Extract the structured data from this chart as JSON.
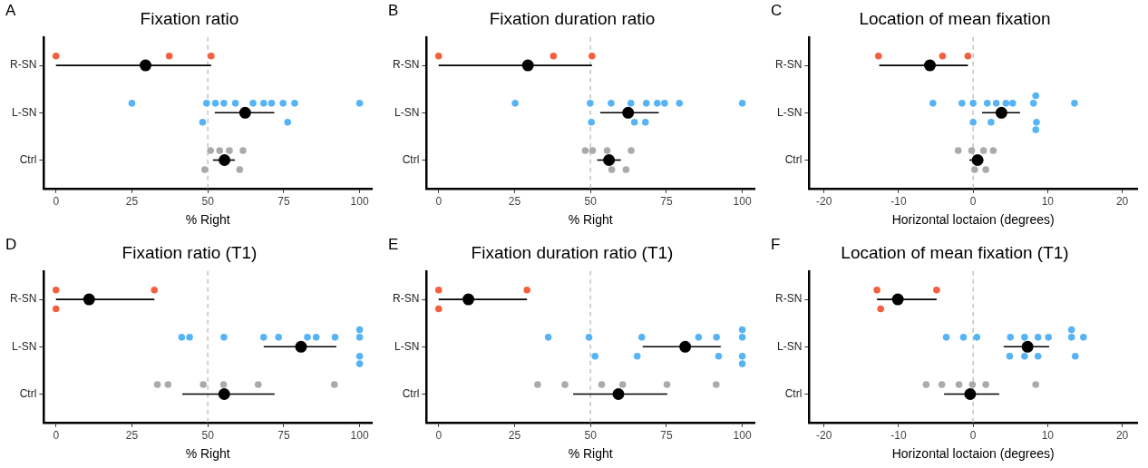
{
  "chart_data": [
    {
      "type": "scatter",
      "orientation": "horizontal",
      "title": "Fixation ratio",
      "xlabel": "% Right",
      "annotations": [
        "A"
      ],
      "categories": [
        "R-SN",
        "L-SN",
        "Ctrl"
      ],
      "xlim": [
        -4,
        104
      ],
      "xticks": [
        0,
        25,
        50,
        75,
        100
      ],
      "grid": false,
      "legend": false,
      "marker": "circle",
      "ref_lines": [
        {
          "axis": "x",
          "value": 50,
          "label": null,
          "color": "#bbbbbb",
          "line_style": "dashed"
        }
      ],
      "series": [
        {
          "color": "#aaaaaa",
          "x": [
            "Ctrl",
            "Ctrl",
            "Ctrl",
            "Ctrl",
            "Ctrl",
            "Ctrl"
          ],
          "values": [
            50.9,
            61.6,
            53.9,
            49.0,
            57.1,
            60.5
          ]
        },
        {
          "color": "#56b4f5",
          "x": [
            "L-SN",
            "L-SN",
            "L-SN",
            "L-SN",
            "L-SN",
            "L-SN",
            "L-SN",
            "L-SN",
            "L-SN",
            "L-SN",
            "L-SN",
            "L-SN",
            "L-SN"
          ],
          "values": [
            55.3,
            49.6,
            68.4,
            48.3,
            59.1,
            71.0,
            78.6,
            25.0,
            52.5,
            64.9,
            74.8,
            100,
            76.3
          ]
        },
        {
          "color": "#f4603f",
          "x": [
            "R-SN",
            "R-SN",
            "R-SN"
          ],
          "values": [
            0,
            37.3,
            51.1
          ]
        },
        {
          "color": "#000000",
          "x": [
            "R-SN",
            "L-SN",
            "Ctrl"
          ],
          "values": [
            29.5,
            62.3,
            55.5
          ],
          "errors": [
            [
              0,
              51.1
            ],
            [
              52.3,
              71.9
            ],
            [
              51.7,
              58.9
            ]
          ]
        }
      ]
    },
    {
      "type": "scatter",
      "orientation": "horizontal",
      "title": "Fixation duration ratio",
      "xlabel": "% Right",
      "annotations": [
        "B"
      ],
      "categories": [
        "R-SN",
        "L-SN",
        "Ctrl"
      ],
      "xlim": [
        -4,
        104
      ],
      "xticks": [
        0,
        25,
        50,
        75,
        100
      ],
      "grid": false,
      "legend": false,
      "marker": "circle",
      "ref_lines": [
        {
          "axis": "x",
          "value": 50,
          "label": null,
          "color": "#bbbbbb",
          "line_style": "dashed"
        }
      ],
      "series": [
        {
          "color": "#aaaaaa",
          "x": [
            "Ctrl",
            "Ctrl",
            "Ctrl",
            "Ctrl",
            "Ctrl",
            "Ctrl"
          ],
          "values": [
            55.5,
            57.0,
            63.4,
            48.3,
            50.7,
            61.7
          ]
        },
        {
          "color": "#56b4f5",
          "x": [
            "L-SN",
            "L-SN",
            "L-SN",
            "L-SN",
            "L-SN",
            "L-SN",
            "L-SN",
            "L-SN",
            "L-SN",
            "L-SN",
            "L-SN",
            "L-SN"
          ],
          "values": [
            25.2,
            49.9,
            50.3,
            56.8,
            63.3,
            64.5,
            68.4,
            74.4,
            100,
            68.1,
            79.3,
            72.0
          ]
        },
        {
          "color": "#f4603f",
          "x": [
            "R-SN",
            "R-SN",
            "R-SN"
          ],
          "values": [
            0,
            37.8,
            50.5
          ]
        },
        {
          "color": "#000000",
          "x": [
            "R-SN",
            "L-SN",
            "Ctrl"
          ],
          "values": [
            29.4,
            62.4,
            56.1
          ],
          "errors": [
            [
              0,
              50.5
            ],
            [
              53.2,
              72.5
            ],
            [
              52.2,
              60.0
            ]
          ]
        }
      ]
    },
    {
      "type": "scatter",
      "orientation": "horizontal",
      "title": "Location of mean fixation",
      "xlabel": "Horizontal loctaion (degrees)",
      "annotations": [
        "C"
      ],
      "categories": [
        "R-SN",
        "L-SN",
        "Ctrl"
      ],
      "xlim": [
        -22,
        22
      ],
      "xticks": [
        -20,
        -10,
        0,
        10,
        20
      ],
      "grid": false,
      "legend": false,
      "marker": "circle",
      "ref_lines": [
        {
          "axis": "x",
          "value": 0,
          "label": null,
          "color": "#bbbbbb",
          "line_style": "dashed"
        }
      ],
      "series": [
        {
          "color": "#aaaaaa",
          "x": [
            "Ctrl",
            "Ctrl",
            "Ctrl",
            "Ctrl",
            "Ctrl",
            "Ctrl"
          ],
          "values": [
            2.7,
            1.4,
            -2.0,
            -0.2,
            0.2,
            1.7
          ]
        },
        {
          "color": "#56b4f5",
          "x": [
            "L-SN",
            "L-SN",
            "L-SN",
            "L-SN",
            "L-SN",
            "L-SN",
            "L-SN",
            "L-SN",
            "L-SN",
            "L-SN",
            "L-SN",
            "L-SN",
            "L-SN",
            "L-SN"
          ],
          "values": [
            -1.5,
            0,
            1.9,
            8.1,
            8.5,
            13.6,
            3.1,
            4.4,
            5.3,
            8.4,
            0.0,
            2.4,
            -5.4,
            8.4
          ]
        },
        {
          "color": "#f4603f",
          "x": [
            "R-SN",
            "R-SN",
            "R-SN"
          ],
          "values": [
            -0.7,
            -12.7,
            -4.1
          ]
        },
        {
          "color": "#000000",
          "x": [
            "R-SN",
            "L-SN",
            "Ctrl"
          ],
          "values": [
            -5.8,
            3.8,
            0.6
          ],
          "errors": [
            [
              -12.6,
              -0.7
            ],
            [
              1.2,
              6.3
            ],
            [
              -0.5,
              1.2
            ]
          ]
        }
      ]
    },
    {
      "type": "scatter",
      "orientation": "horizontal",
      "title": "Fixation ratio (T1)",
      "xlabel": "% Right",
      "annotations": [
        "D"
      ],
      "categories": [
        "R-SN",
        "L-SN",
        "Ctrl"
      ],
      "xlim": [
        -4,
        104
      ],
      "xticks": [
        0,
        25,
        50,
        75,
        100
      ],
      "grid": false,
      "legend": false,
      "marker": "circle",
      "ref_lines": [
        {
          "axis": "x",
          "value": 50,
          "label": null,
          "color": "#bbbbbb",
          "line_style": "dashed"
        }
      ],
      "series": [
        {
          "color": "#aaaaaa",
          "x": [
            "Ctrl",
            "Ctrl",
            "Ctrl",
            "Ctrl",
            "Ctrl",
            "Ctrl"
          ],
          "values": [
            48.5,
            33.4,
            36.9,
            55.2,
            66.6,
            91.7
          ]
        },
        {
          "color": "#56b4f5",
          "x": [
            "L-SN",
            "L-SN",
            "L-SN",
            "L-SN",
            "L-SN",
            "L-SN",
            "L-SN",
            "L-SN",
            "L-SN",
            "L-SN",
            "L-SN",
            "L-SN"
          ],
          "values": [
            41.4,
            55.3,
            44.0,
            68.4,
            82.8,
            85.7,
            91.9,
            100,
            73.3,
            100,
            100,
            100
          ]
        },
        {
          "color": "#f4603f",
          "x": [
            "R-SN",
            "R-SN",
            "R-SN"
          ],
          "values": [
            0,
            32.4,
            0
          ]
        },
        {
          "color": "#000000",
          "x": [
            "R-SN",
            "L-SN",
            "Ctrl"
          ],
          "values": [
            10.9,
            80.7,
            55.4
          ],
          "errors": [
            [
              0,
              32.4
            ],
            [
              68.4,
              92.3
            ],
            [
              41.6,
              72.0
            ]
          ]
        }
      ]
    },
    {
      "type": "scatter",
      "orientation": "horizontal",
      "title": "Fixation duration ratio (T1)",
      "xlabel": "% Right",
      "annotations": [
        "E"
      ],
      "categories": [
        "R-SN",
        "L-SN",
        "Ctrl"
      ],
      "xlim": [
        -4,
        104
      ],
      "xticks": [
        0,
        25,
        50,
        75,
        100
      ],
      "grid": false,
      "legend": false,
      "marker": "circle",
      "ref_lines": [
        {
          "axis": "x",
          "value": 50,
          "label": null,
          "color": "#bbbbbb",
          "line_style": "dashed"
        }
      ],
      "series": [
        {
          "color": "#aaaaaa",
          "x": [
            "Ctrl",
            "Ctrl",
            "Ctrl",
            "Ctrl",
            "Ctrl",
            "Ctrl"
          ],
          "values": [
            32.6,
            41.6,
            75.2,
            91.4,
            53.7,
            60.6
          ]
        },
        {
          "color": "#56b4f5",
          "x": [
            "L-SN",
            "L-SN",
            "L-SN",
            "L-SN",
            "L-SN",
            "L-SN",
            "L-SN",
            "L-SN",
            "L-SN",
            "L-SN",
            "L-SN",
            "L-SN"
          ],
          "values": [
            36.1,
            49.5,
            51.5,
            66.9,
            85.6,
            100,
            91.5,
            100,
            65.4,
            100,
            92.2,
            100
          ]
        },
        {
          "color": "#f4603f",
          "x": [
            "R-SN",
            "R-SN",
            "R-SN"
          ],
          "values": [
            0,
            29.1,
            0
          ]
        },
        {
          "color": "#000000",
          "x": [
            "R-SN",
            "L-SN",
            "Ctrl"
          ],
          "values": [
            9.8,
            81.2,
            59.2
          ],
          "errors": [
            [
              0,
              29.1
            ],
            [
              67.2,
              92.9
            ],
            [
              44.3,
              75.3
            ]
          ]
        }
      ]
    },
    {
      "type": "scatter",
      "orientation": "horizontal",
      "title": "Location of mean fixation (T1)",
      "xlabel": "Horizontal loctaion (degrees)",
      "annotations": [
        "F"
      ],
      "categories": [
        "R-SN",
        "L-SN",
        "Ctrl"
      ],
      "xlim": [
        -22,
        22
      ],
      "xticks": [
        -20,
        -10,
        0,
        10,
        20
      ],
      "grid": false,
      "legend": false,
      "marker": "circle",
      "ref_lines": [
        {
          "axis": "x",
          "value": 0,
          "label": null,
          "color": "#bbbbbb",
          "line_style": "dashed"
        }
      ],
      "series": [
        {
          "color": "#aaaaaa",
          "x": [
            "Ctrl",
            "Ctrl",
            "Ctrl",
            "Ctrl",
            "Ctrl",
            "Ctrl"
          ],
          "values": [
            -4.2,
            -1.9,
            -6.3,
            1.7,
            -0.1,
            8.4
          ]
        },
        {
          "color": "#56b4f5",
          "x": [
            "L-SN",
            "L-SN",
            "L-SN",
            "L-SN",
            "L-SN",
            "L-SN",
            "L-SN",
            "L-SN",
            "L-SN",
            "L-SN",
            "L-SN",
            "L-SN",
            "L-SN",
            "L-SN"
          ],
          "values": [
            -3.6,
            -1.3,
            0.5,
            5.0,
            6.9,
            8.7,
            4.9,
            8.7,
            10.1,
            13.2,
            14.8,
            13.7,
            13.2,
            6.9
          ]
        },
        {
          "color": "#f4603f",
          "x": [
            "R-SN",
            "R-SN",
            "R-SN"
          ],
          "values": [
            -12.9,
            -12.4,
            -4.9
          ]
        },
        {
          "color": "#000000",
          "x": [
            "R-SN",
            "L-SN",
            "Ctrl"
          ],
          "values": [
            -10.1,
            7.3,
            -0.4
          ],
          "errors": [
            [
              -12.9,
              -4.9
            ],
            [
              4.1,
              10.2
            ],
            [
              -3.9,
              3.5
            ]
          ]
        }
      ]
    }
  ]
}
